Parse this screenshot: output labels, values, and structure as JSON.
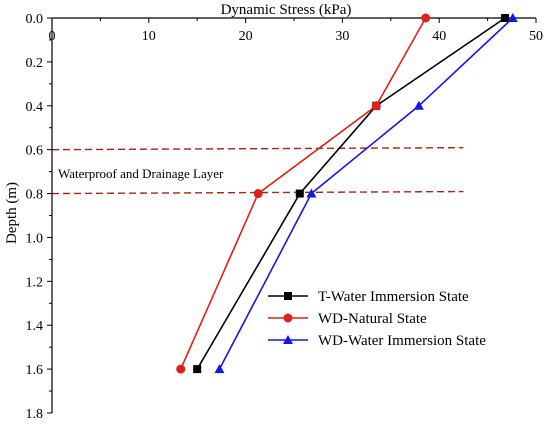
{
  "chart_data": {
    "type": "line",
    "xlabel": "Dynamic Stress (kPa)",
    "ylabel": "Depth (m)",
    "xlim": [
      0,
      50
    ],
    "ylim": [
      0,
      1.8
    ],
    "x_axis_position": "top",
    "y_axis_inverted": true,
    "grid": false,
    "x_ticks": [
      "0",
      "10",
      "20",
      "30",
      "40",
      "50"
    ],
    "y_ticks": [
      "0.0",
      "0.2",
      "0.4",
      "0.6",
      "0.8",
      "1.0",
      "1.2",
      "1.4",
      "1.6",
      "1.8"
    ],
    "legend_position": "bottom-right",
    "series": [
      {
        "name": "T-Water Immersion State",
        "color": "#000000",
        "marker": "square",
        "points": [
          {
            "stress": 46.8,
            "depth": 0.0
          },
          {
            "stress": 33.5,
            "depth": 0.4
          },
          {
            "stress": 25.6,
            "depth": 0.8
          },
          {
            "stress": 15.0,
            "depth": 1.6
          }
        ]
      },
      {
        "name": "WD-Natural State",
        "color": "#e0201a",
        "marker": "circle",
        "points": [
          {
            "stress": 38.6,
            "depth": 0.0
          },
          {
            "stress": 33.5,
            "depth": 0.4
          },
          {
            "stress": 21.3,
            "depth": 0.8
          },
          {
            "stress": 13.3,
            "depth": 1.6
          }
        ]
      },
      {
        "name": "WD-Water Immersion State",
        "color": "#1515e6",
        "marker": "triangle",
        "points": [
          {
            "stress": 47.6,
            "depth": 0.0
          },
          {
            "stress": 37.9,
            "depth": 0.4
          },
          {
            "stress": 26.8,
            "depth": 0.8
          },
          {
            "stress": 17.3,
            "depth": 1.6
          }
        ]
      }
    ],
    "reference_lines": [
      {
        "depth": 0.6,
        "color": "#a0281a",
        "style": "dashed"
      },
      {
        "depth": 0.8,
        "color": "#a0281a",
        "style": "dashed"
      }
    ],
    "annotations": [
      {
        "text": "Waterproof and Drainage Layer"
      }
    ]
  }
}
